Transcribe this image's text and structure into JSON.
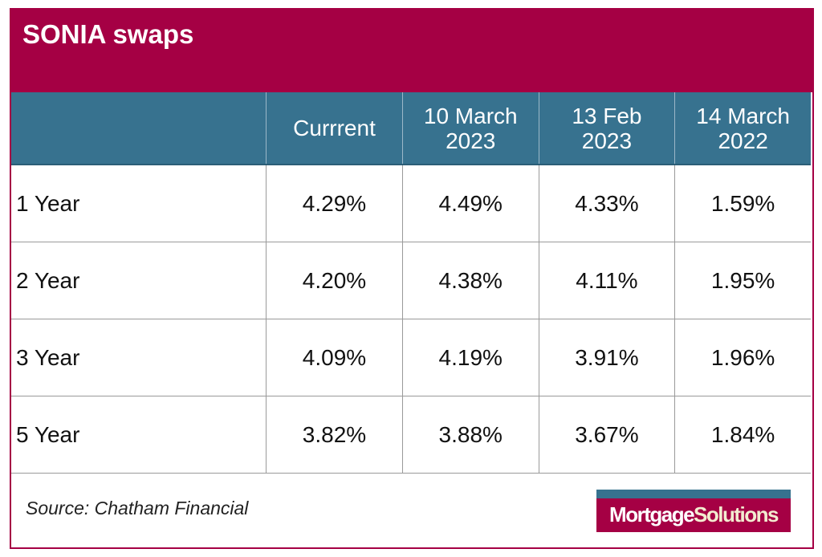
{
  "title": "SONIA swaps",
  "chart_data": {
    "type": "table",
    "title": "SONIA swaps",
    "columns": [
      "",
      "Currrent",
      "10 March 2023",
      "13 Feb 2023",
      "14 March 2022"
    ],
    "rows": [
      {
        "label": "1 Year",
        "values": [
          "4.29%",
          "4.49%",
          "4.33%",
          "1.59%"
        ]
      },
      {
        "label": "2 Year",
        "values": [
          "4.20%",
          "4.38%",
          "4.11%",
          "1.95%"
        ]
      },
      {
        "label": "3 Year",
        "values": [
          "4.09%",
          "4.19%",
          "3.91%",
          "1.96%"
        ]
      },
      {
        "label": "5 Year",
        "values": [
          "3.82%",
          "3.88%",
          "3.67%",
          "1.84%"
        ]
      }
    ]
  },
  "headers": [
    {
      "line1": "Currrent",
      "line2": ""
    },
    {
      "line1": "10 March",
      "line2": "2023"
    },
    {
      "line1": "13 Feb",
      "line2": "2023"
    },
    {
      "line1": "14 March",
      "line2": "2022"
    }
  ],
  "source": "Source: Chatham Financial",
  "logo": {
    "part1": "Mortgage",
    "part2": "Solutions"
  },
  "colors": {
    "brand": "#a50044",
    "header": "#37728f"
  }
}
